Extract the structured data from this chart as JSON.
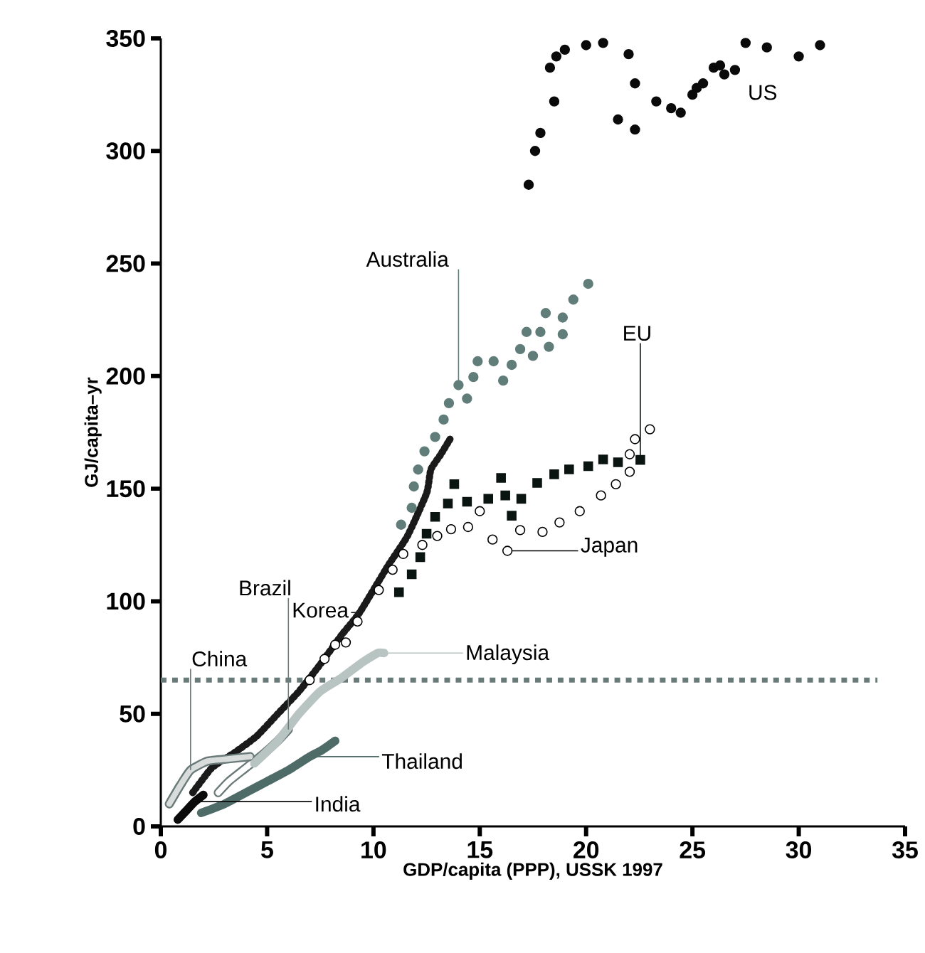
{
  "chart_data": {
    "type": "scatter",
    "xlabel": "GDP/capita (PPP), USSK 1997",
    "ylabel": "GJ/capita–yr",
    "xlim": [
      0,
      35
    ],
    "ylim": [
      0,
      350
    ],
    "xticks": [
      0,
      5,
      10,
      15,
      20,
      25,
      30,
      35
    ],
    "yticks": [
      0,
      50,
      100,
      150,
      200,
      250,
      300,
      350
    ],
    "grid": false,
    "legend": "center",
    "ref_lines": [
      {
        "axis": "y",
        "value": 65,
        "color": "#6a7a78",
        "line_style": "dotted"
      }
    ],
    "series": [
      {
        "name": "US",
        "type": "scatter",
        "marker": "circle",
        "color": "#0a0a0a",
        "x": [
          17.3,
          17.6,
          17.85,
          18.5,
          18.3,
          18.6,
          19.0,
          20.0,
          20.8,
          21.5,
          22.3,
          22.0,
          22.3,
          23.3,
          24.0,
          24.45,
          25.0,
          25.2,
          25.5,
          26.0,
          26.3,
          26.5,
          27.0,
          27.5,
          28.5,
          30.0,
          31.0
        ],
        "values": [
          285,
          300,
          308,
          322,
          337,
          342,
          345,
          347,
          348,
          314,
          309.5,
          343,
          330,
          322,
          319,
          317,
          325,
          328,
          330,
          337,
          338,
          334,
          336,
          348,
          346,
          342,
          347
        ]
      },
      {
        "name": "Australia",
        "type": "scatter",
        "marker": "circle",
        "color": "#607d7a",
        "x": [
          11.3,
          11.8,
          11.9,
          12.1,
          12.4,
          12.9,
          13.3,
          13.55,
          14.0,
          14.4,
          14.7,
          14.9,
          15.65,
          16.1,
          16.5,
          16.9,
          17.5,
          17.2,
          17.85,
          18.1,
          18.25,
          18.9,
          18.9,
          19.4,
          20.1
        ],
        "values": [
          134,
          141.5,
          151,
          158.5,
          166.6,
          173,
          180.7,
          188,
          196,
          190,
          199.6,
          206.6,
          206.6,
          198,
          205,
          212,
          209,
          219.6,
          219.6,
          228,
          213,
          218.6,
          226,
          234,
          241
        ]
      },
      {
        "name": "EU",
        "type": "scatter",
        "marker": "square",
        "color": "#0a1410",
        "x": [
          11.2,
          11.8,
          12.2,
          12.5,
          12.9,
          13.5,
          13.8,
          14.4,
          15.4,
          16.0,
          16.2,
          16.5,
          16.95,
          17.7,
          18.5,
          19.2,
          20.1,
          20.8,
          21.5,
          22.55
        ],
        "values": [
          104,
          112,
          119.6,
          130,
          137.5,
          143.4,
          152,
          144.2,
          145.5,
          154.8,
          147,
          138,
          145.5,
          152.6,
          156.4,
          158.6,
          160,
          163,
          161.7,
          162.8
        ]
      },
      {
        "name": "Japan",
        "type": "scatter",
        "marker": "circle",
        "color": "#ffffff",
        "x": [
          7.0,
          7.7,
          8.2,
          8.7,
          9.25,
          10.25,
          10.9,
          11.4,
          12.3,
          13.0,
          13.65,
          14.45,
          15.0,
          15.6,
          16.3,
          16.9,
          17.95,
          18.75,
          19.7,
          20.7,
          21.4,
          22.05,
          22.05,
          22.3,
          23.0
        ],
        "values": [
          65,
          74.4,
          80.7,
          81.7,
          91,
          105,
          114,
          121,
          125,
          129,
          132,
          133,
          140,
          127.4,
          122.4,
          131.6,
          130.8,
          135,
          140,
          147,
          152,
          157.5,
          165.3,
          172,
          176.4
        ]
      },
      {
        "name": "Korea",
        "type": "line",
        "line_style": "dashed",
        "color": "#1a1a1a",
        "x": [
          1.5,
          2.4,
          3.5,
          4.5,
          5.5,
          6.5,
          7.5,
          8.5,
          9.35,
          10.7,
          11.6,
          12.5,
          12.7,
          13.15,
          13.6
        ],
        "values": [
          15,
          26,
          33,
          40,
          50,
          60,
          72,
          85,
          95,
          116,
          129,
          148,
          158.5,
          165,
          172
        ]
      },
      {
        "name": "Brazil",
        "type": "line",
        "color": "#ffffff",
        "x": [
          2.7,
          3.2,
          4.0,
          4.8,
          5.5,
          6.0
        ],
        "values": [
          15,
          20,
          26,
          32,
          38,
          43
        ]
      },
      {
        "name": "China",
        "type": "line",
        "color": "#d8dcdb",
        "x": [
          0.4,
          0.9,
          1.4,
          2.2,
          3.2,
          4.2
        ],
        "values": [
          10,
          18,
          25,
          29,
          30,
          31
        ]
      },
      {
        "name": "Malaysia",
        "type": "line",
        "color": "#b8c4c2",
        "x": [
          4.4,
          5.5,
          6.5,
          7.5,
          8.5,
          9.5,
          10.2,
          10.5
        ],
        "values": [
          28,
          38,
          50,
          60,
          66,
          73,
          77,
          77
        ]
      },
      {
        "name": "Thailand",
        "type": "line",
        "color": "#4e6b68",
        "x": [
          1.9,
          3.0,
          4.0,
          5.0,
          6.0,
          7.0,
          7.6,
          8.2
        ],
        "values": [
          6,
          10,
          15,
          20,
          25,
          31,
          34,
          38
        ]
      },
      {
        "name": "India",
        "type": "line",
        "color": "#0a0a0a",
        "x": [
          0.8,
          1.2,
          1.6,
          2.0
        ],
        "values": [
          3,
          7,
          11,
          14
        ]
      }
    ]
  }
}
